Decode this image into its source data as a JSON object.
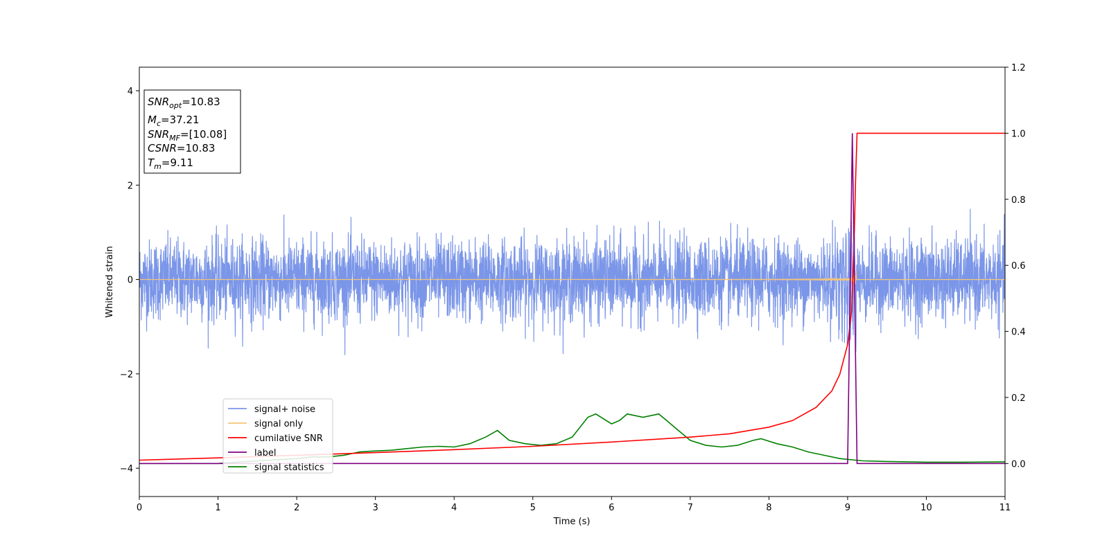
{
  "chart_data": {
    "type": "line",
    "title": "",
    "xlabel": "Time (s)",
    "ylabel": "Whitened strain",
    "y2label": "",
    "xlim": [
      0,
      11
    ],
    "ylim": [
      -4.6,
      4.5
    ],
    "y2lim": [
      -0.1,
      1.2
    ],
    "xticks": [
      0,
      1,
      2,
      3,
      4,
      5,
      6,
      7,
      8,
      9,
      10,
      11
    ],
    "yticks": [
      -4,
      -2,
      0,
      2,
      4
    ],
    "y2ticks": [
      "0.0",
      "0.2",
      "0.4",
      "0.6",
      "0.8",
      "1.0",
      "1.2"
    ],
    "grid": false,
    "legend_position": "lower-left",
    "annotation": {
      "snr_opt": "=10.83",
      "mc": "=37.21",
      "snr_mf": "=[10.08]",
      "csnr": "=10.83",
      "tm": "=9.11"
    },
    "series": [
      {
        "name": "signal+ noise",
        "axis": "left",
        "color": "#7b96e8",
        "description_values": {
          "typical_amplitude": 0.6,
          "peak_amplitude": 1.75,
          "sample_rate_hint": 400
        }
      },
      {
        "name": "signal only",
        "axis": "left",
        "color": "#f5c57a",
        "chirp": {
          "merger_time": 9.11,
          "peak_amplitude": 0.6
        }
      },
      {
        "name": "cumilative SNR",
        "axis": "right",
        "color": "#ff0000",
        "x": [
          0,
          1,
          2,
          3,
          4,
          5,
          6,
          7,
          7.5,
          8,
          8.3,
          8.6,
          8.8,
          8.9,
          9.0,
          9.05,
          9.08,
          9.1,
          9.12,
          9.15,
          11
        ],
        "values": [
          0.01,
          0.017,
          0.025,
          0.033,
          0.042,
          0.052,
          0.065,
          0.08,
          0.09,
          0.11,
          0.13,
          0.17,
          0.22,
          0.27,
          0.36,
          0.46,
          0.65,
          0.85,
          1.0,
          1.0,
          1.0
        ]
      },
      {
        "name": "label",
        "axis": "right",
        "color": "#800080",
        "x": [
          0,
          9.0,
          9.06,
          9.12,
          11
        ],
        "values": [
          0,
          0,
          1.0,
          0,
          0
        ]
      },
      {
        "name": "signal statistics",
        "axis": "right",
        "color": "#008000",
        "x": [
          0,
          0.5,
          1.0,
          1.3,
          1.8,
          2.0,
          2.2,
          2.4,
          2.6,
          2.8,
          3.0,
          3.2,
          3.4,
          3.6,
          3.8,
          4.0,
          4.2,
          4.4,
          4.55,
          4.7,
          4.9,
          5.1,
          5.3,
          5.5,
          5.7,
          5.8,
          6.0,
          6.1,
          6.2,
          6.3,
          6.4,
          6.5,
          6.6,
          6.7,
          6.85,
          7.0,
          7.2,
          7.4,
          7.6,
          7.8,
          7.9,
          8.1,
          8.3,
          8.5,
          8.7,
          8.9,
          9.1,
          9.2,
          9.5,
          10,
          10.5,
          11
        ],
        "values": [
          0,
          0,
          0,
          0.005,
          0.012,
          0.015,
          0.02,
          0.02,
          0.025,
          0.035,
          0.038,
          0.04,
          0.045,
          0.05,
          0.052,
          0.05,
          0.06,
          0.08,
          0.1,
          0.07,
          0.06,
          0.055,
          0.06,
          0.08,
          0.14,
          0.15,
          0.12,
          0.13,
          0.15,
          0.145,
          0.14,
          0.145,
          0.15,
          0.13,
          0.1,
          0.07,
          0.055,
          0.05,
          0.055,
          0.07,
          0.075,
          0.06,
          0.05,
          0.035,
          0.025,
          0.015,
          0.01,
          0.008,
          0.006,
          0.004,
          0.004,
          0.005
        ]
      }
    ]
  }
}
